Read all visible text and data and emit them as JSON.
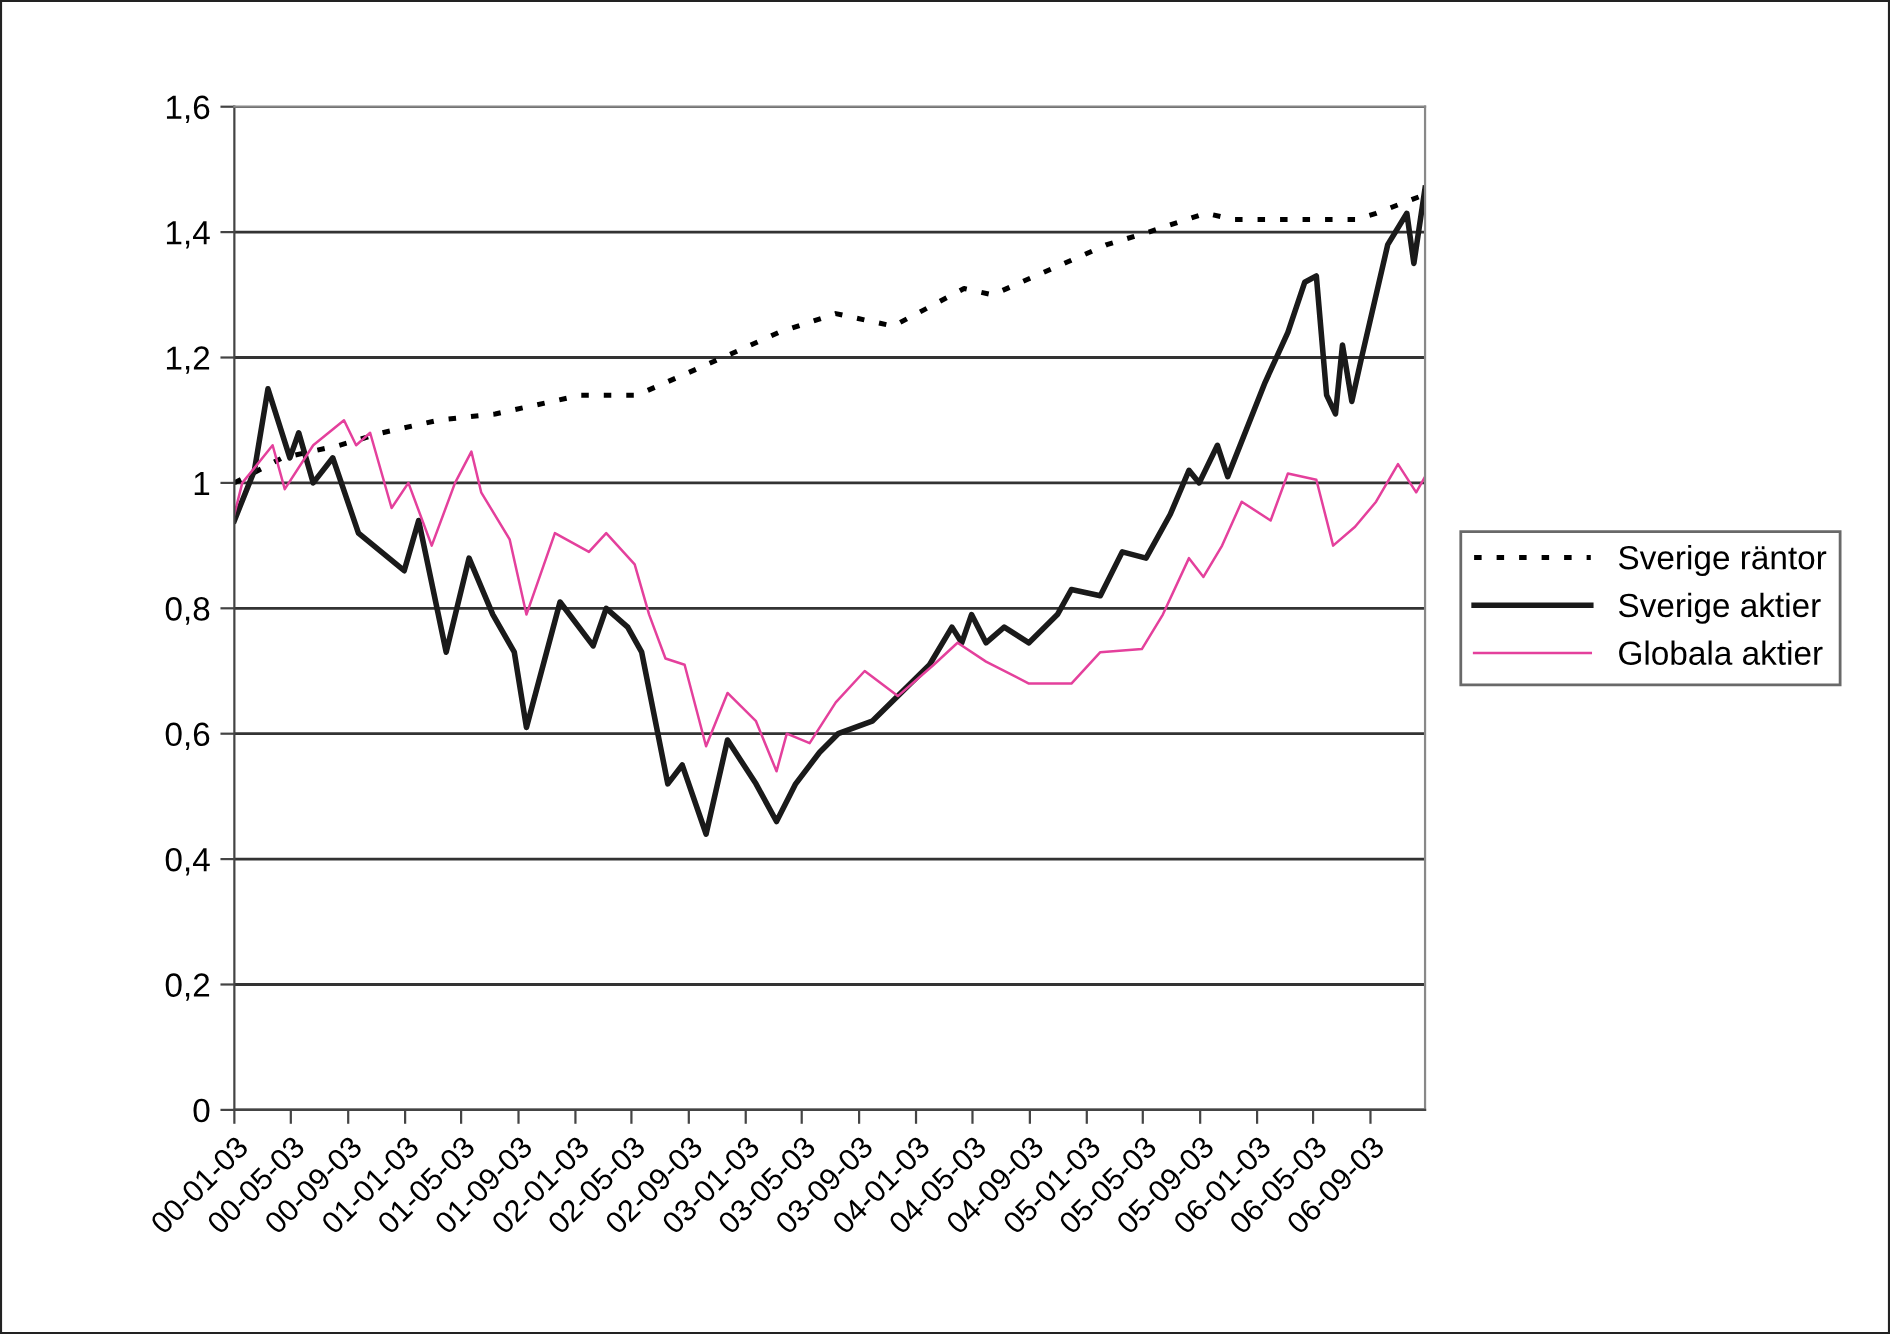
{
  "chart_data": {
    "type": "line",
    "xlim": [
      "2000-01-03",
      "2006-12-29"
    ],
    "xticks": [
      {
        "value": "2000-01-03",
        "label": "00-01-03"
      },
      {
        "value": "2000-05-03",
        "label": "00-05-03"
      },
      {
        "value": "2000-09-03",
        "label": "00-09-03"
      },
      {
        "value": "2001-01-03",
        "label": "01-01-03"
      },
      {
        "value": "2001-05-03",
        "label": "01-05-03"
      },
      {
        "value": "2001-09-03",
        "label": "01-09-03"
      },
      {
        "value": "2002-01-03",
        "label": "02-01-03"
      },
      {
        "value": "2002-05-03",
        "label": "02-05-03"
      },
      {
        "value": "2002-09-03",
        "label": "02-09-03"
      },
      {
        "value": "2003-01-03",
        "label": "03-01-03"
      },
      {
        "value": "2003-05-03",
        "label": "03-05-03"
      },
      {
        "value": "2003-09-03",
        "label": "03-09-03"
      },
      {
        "value": "2004-01-03",
        "label": "04-01-03"
      },
      {
        "value": "2004-05-03",
        "label": "04-05-03"
      },
      {
        "value": "2004-09-03",
        "label": "04-09-03"
      },
      {
        "value": "2005-01-03",
        "label": "05-01-03"
      },
      {
        "value": "2005-05-03",
        "label": "05-05-03"
      },
      {
        "value": "2005-09-03",
        "label": "05-09-03"
      },
      {
        "value": "2006-01-03",
        "label": "06-01-03"
      },
      {
        "value": "2006-05-03",
        "label": "06-05-03"
      },
      {
        "value": "2006-09-03",
        "label": "06-09-03"
      }
    ],
    "ylim": [
      0,
      1.6
    ],
    "yticks": [
      0,
      {
        "value": 0.2,
        "label": "0,2"
      },
      {
        "value": 0.4,
        "label": "0,4"
      },
      {
        "value": 0.6,
        "label": "0,6"
      },
      {
        "value": 0.8,
        "label": "0,8"
      },
      1,
      {
        "value": 1.2,
        "label": "1,2"
      },
      {
        "value": 1.4,
        "label": "1,4"
      },
      {
        "value": 1.6,
        "label": "1,6"
      }
    ],
    "grid": "y",
    "legend": "right",
    "marker": "none",
    "series": [
      {
        "name": "Sverige räntor",
        "color": "#000000",
        "line_style": "dotted",
        "x": [
          "2000-01-03",
          "2000-04-15",
          "2000-08-15",
          "2000-11-15",
          "2001-03-15",
          "2001-07-15",
          "2002-01-15",
          "2002-05-15",
          "2002-11-15",
          "2003-03-15",
          "2003-07-15",
          "2003-11-15",
          "2004-04-15",
          "2004-06-15",
          "2005-02-15",
          "2005-05-15",
          "2005-09-15",
          "2005-11-15",
          "2006-04-15",
          "2006-08-01",
          "2006-09-15",
          "2006-12-29"
        ],
        "values": [
          1.0,
          1.04,
          1.06,
          1.08,
          1.1,
          1.11,
          1.14,
          1.14,
          1.2,
          1.24,
          1.27,
          1.25,
          1.31,
          1.3,
          1.38,
          1.4,
          1.43,
          1.42,
          1.42,
          1.42,
          1.43,
          1.46
        ]
      },
      {
        "name": "Sverige aktier",
        "color": "#1a1a1a",
        "line_style": "solid",
        "x": [
          "2000-01-03",
          "2000-02-15",
          "2000-03-15",
          "2000-05-01",
          "2000-05-20",
          "2000-06-20",
          "2000-08-01",
          "2000-09-25",
          "2001-01-01",
          "2001-02-01",
          "2001-04-01",
          "2001-05-20",
          "2001-07-10",
          "2001-08-25",
          "2001-09-20",
          "2001-12-01",
          "2002-02-10",
          "2002-03-10",
          "2002-04-25",
          "2002-05-25",
          "2002-07-20",
          "2002-08-20",
          "2002-10-10",
          "2002-11-25",
          "2003-01-25",
          "2003-03-10",
          "2003-04-20",
          "2003-06-10",
          "2003-07-20",
          "2003-10-01",
          "2004-02-01",
          "2004-03-20",
          "2004-04-10",
          "2004-05-01",
          "2004-06-01",
          "2004-07-10",
          "2004-09-01",
          "2004-11-01",
          "2004-12-01",
          "2005-02-01",
          "2005-03-20",
          "2005-05-10",
          "2005-07-01",
          "2005-08-10",
          "2005-09-01",
          "2005-10-10",
          "2005-11-01",
          "2006-01-20",
          "2006-03-10",
          "2006-04-15",
          "2006-05-10",
          "2006-06-01",
          "2006-06-20",
          "2006-07-05",
          "2006-07-25",
          "2006-08-15",
          "2006-10-10",
          "2006-11-20",
          "2006-12-05",
          "2006-12-29"
        ],
        "values": [
          0.94,
          1.02,
          1.15,
          1.04,
          1.08,
          1.0,
          1.04,
          0.92,
          0.86,
          0.94,
          0.73,
          0.88,
          0.79,
          0.73,
          0.61,
          0.81,
          0.74,
          0.8,
          0.77,
          0.73,
          0.52,
          0.55,
          0.44,
          0.59,
          0.52,
          0.46,
          0.52,
          0.57,
          0.6,
          0.62,
          0.71,
          0.77,
          0.745,
          0.79,
          0.745,
          0.77,
          0.745,
          0.79,
          0.83,
          0.82,
          0.89,
          0.88,
          0.95,
          1.02,
          1.0,
          1.06,
          1.01,
          1.16,
          1.24,
          1.32,
          1.33,
          1.14,
          1.11,
          1.22,
          1.13,
          1.2,
          1.38,
          1.43,
          1.35,
          1.47
        ]
      },
      {
        "name": "Globala aktier",
        "color": "#e4409c",
        "line_style": "solid",
        "x": [
          "2000-01-03",
          "2000-01-20",
          "2000-03-25",
          "2000-04-20",
          "2000-06-20",
          "2000-08-25",
          "2000-09-20",
          "2000-10-20",
          "2000-12-05",
          "2001-01-10",
          "2001-03-01",
          "2001-04-20",
          "2001-05-25",
          "2001-06-15",
          "2001-08-15",
          "2001-09-20",
          "2001-11-20",
          "2002-02-01",
          "2002-03-10",
          "2002-05-10",
          "2002-06-10",
          "2002-07-15",
          "2002-08-25",
          "2002-10-10",
          "2002-11-25",
          "2003-01-25",
          "2003-03-10",
          "2003-04-01",
          "2003-05-20",
          "2003-07-15",
          "2003-09-15",
          "2003-11-25",
          "2004-02-10",
          "2004-04-01",
          "2004-06-01",
          "2004-09-01",
          "2004-12-01",
          "2005-02-01",
          "2005-05-01",
          "2005-06-15",
          "2005-08-10",
          "2005-09-10",
          "2005-10-20",
          "2005-12-01",
          "2006-02-01",
          "2006-03-10",
          "2006-05-10",
          "2006-06-15",
          "2006-08-01",
          "2006-09-15",
          "2006-11-01",
          "2006-12-10",
          "2006-12-29"
        ],
        "values": [
          0.95,
          1.0,
          1.06,
          0.99,
          1.06,
          1.1,
          1.06,
          1.08,
          0.96,
          1.0,
          0.9,
          1.0,
          1.05,
          0.985,
          0.91,
          0.79,
          0.92,
          0.89,
          0.92,
          0.87,
          0.79,
          0.72,
          0.71,
          0.58,
          0.665,
          0.62,
          0.54,
          0.6,
          0.585,
          0.65,
          0.7,
          0.66,
          0.71,
          0.745,
          0.715,
          0.68,
          0.68,
          0.73,
          0.735,
          0.79,
          0.88,
          0.85,
          0.9,
          0.97,
          0.94,
          1.015,
          1.005,
          0.9,
          0.93,
          0.97,
          1.03,
          0.985,
          1.01
        ]
      }
    ]
  }
}
